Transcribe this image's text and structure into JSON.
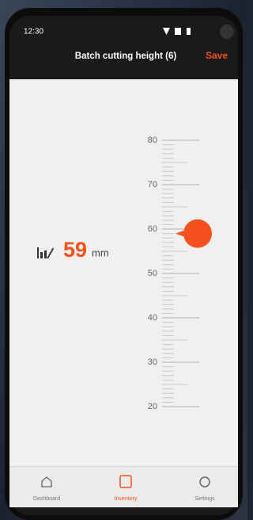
{
  "status_bar": {
    "time": "12:30"
  },
  "header": {
    "title": "Batch cutting height (6)",
    "action": "Save"
  },
  "height": {
    "value": 59,
    "unit": "mm"
  },
  "scale": {
    "ticks": [
      80,
      70,
      60,
      50,
      40,
      30,
      20
    ]
  },
  "nav": [
    {
      "label": "Dashboard"
    },
    {
      "label": "Inventory"
    },
    {
      "label": "Settings"
    }
  ]
}
